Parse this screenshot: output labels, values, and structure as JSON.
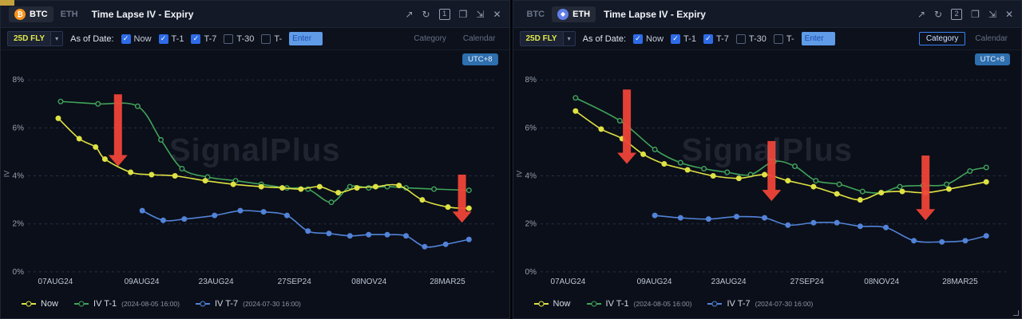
{
  "icons": {
    "open_new": "↗",
    "refresh": "↻",
    "popout": "❐",
    "expand": "⇲",
    "close": "✕",
    "caret": "▾"
  },
  "panels": [
    {
      "badge": "1",
      "title": "Time Lapse IV - Expiry",
      "tabs": [
        {
          "label": "BTC",
          "active": true
        },
        {
          "label": "ETH",
          "active": false
        }
      ],
      "toolbar": {
        "dropdown_value": "25D FLY",
        "as_of_label": "As of Date:",
        "checkboxes": [
          {
            "label": "Now",
            "checked": true
          },
          {
            "label": "T-1",
            "checked": true
          },
          {
            "label": "T-7",
            "checked": true
          },
          {
            "label": "T-30",
            "checked": false
          },
          {
            "label": "T-",
            "checked": false
          }
        ],
        "input_placeholder": "Enter",
        "views": [
          {
            "label": "Category",
            "active": true
          },
          {
            "label": "Calendar",
            "active": false
          }
        ]
      },
      "chart": {
        "type": "line",
        "watermark": "SignalPlus",
        "utc": "UTC+8",
        "ylabel": "IV",
        "ylim": [
          0,
          8
        ],
        "yticks": [
          {
            "label": "0%",
            "value": 0
          },
          {
            "label": "2%",
            "value": 2
          },
          {
            "label": "4%",
            "value": 4
          },
          {
            "label": "6%",
            "value": 6
          },
          {
            "label": "8%",
            "value": 8
          }
        ],
        "xticks": [
          {
            "label": "07AUG24",
            "x": 0.059
          },
          {
            "label": "09AUG24",
            "x": 0.244
          },
          {
            "label": "23AUG24",
            "x": 0.403
          },
          {
            "label": "27SEP24",
            "x": 0.571
          },
          {
            "label": "08NOV24",
            "x": 0.731
          },
          {
            "label": "28MAR25",
            "x": 0.899
          }
        ],
        "draw_order": [
          1,
          0,
          2
        ],
        "series": [
          {
            "name": "Now",
            "date": "",
            "color": "#dfe243",
            "dot_filled": true,
            "points": [
              [
                0.065,
                6.4
              ],
              [
                0.11,
                5.55
              ],
              [
                0.145,
                5.2
              ],
              [
                0.165,
                4.7
              ],
              [
                0.22,
                4.15
              ],
              [
                0.265,
                4.05
              ],
              [
                0.315,
                4.0
              ],
              [
                0.38,
                3.8
              ],
              [
                0.44,
                3.65
              ],
              [
                0.5,
                3.55
              ],
              [
                0.545,
                3.5
              ],
              [
                0.585,
                3.45
              ],
              [
                0.625,
                3.55
              ],
              [
                0.665,
                3.3
              ],
              [
                0.705,
                3.5
              ],
              [
                0.745,
                3.55
              ],
              [
                0.795,
                3.6
              ],
              [
                0.845,
                3.0
              ],
              [
                0.9,
                2.7
              ],
              [
                0.945,
                2.65
              ]
            ]
          },
          {
            "name": "IV T-1",
            "date": "(2024-08-05 16:00)",
            "color": "#41a35a",
            "dot_filled": false,
            "points": [
              [
                0.07,
                7.1
              ],
              [
                0.15,
                7.0
              ],
              [
                0.235,
                6.9
              ],
              [
                0.285,
                5.5
              ],
              [
                0.33,
                4.3
              ],
              [
                0.385,
                3.95
              ],
              [
                0.445,
                3.8
              ],
              [
                0.5,
                3.65
              ],
              [
                0.555,
                3.5
              ],
              [
                0.6,
                3.45
              ],
              [
                0.65,
                2.9
              ],
              [
                0.69,
                3.55
              ],
              [
                0.73,
                3.5
              ],
              [
                0.77,
                3.55
              ],
              [
                0.81,
                3.5
              ],
              [
                0.87,
                3.45
              ],
              [
                0.945,
                3.4
              ]
            ]
          },
          {
            "name": "IV T-7",
            "date": "(2024-07-30 16:00)",
            "color": "#5283d8",
            "dot_filled": true,
            "points": [
              [
                0.245,
                2.55
              ],
              [
                0.29,
                2.15
              ],
              [
                0.335,
                2.2
              ],
              [
                0.4,
                2.35
              ],
              [
                0.455,
                2.55
              ],
              [
                0.505,
                2.5
              ],
              [
                0.555,
                2.35
              ],
              [
                0.6,
                1.7
              ],
              [
                0.645,
                1.6
              ],
              [
                0.69,
                1.5
              ],
              [
                0.73,
                1.55
              ],
              [
                0.77,
                1.55
              ],
              [
                0.81,
                1.5
              ],
              [
                0.85,
                1.05
              ],
              [
                0.895,
                1.15
              ],
              [
                0.945,
                1.35
              ]
            ]
          }
        ],
        "arrows": [
          {
            "x": 0.193,
            "from": 7.4,
            "to": 4.4
          },
          {
            "x": 0.93,
            "from": 4.05,
            "to": 2.05
          }
        ]
      }
    },
    {
      "badge": "2",
      "title": "Time Lapse IV - Expiry",
      "tabs": [
        {
          "label": "BTC",
          "active": false
        },
        {
          "label": "ETH",
          "active": true
        }
      ],
      "toolbar": {
        "dropdown_value": "25D FLY",
        "as_of_label": "As of Date:",
        "checkboxes": [
          {
            "label": "Now",
            "checked": true
          },
          {
            "label": "T-1",
            "checked": true
          },
          {
            "label": "T-7",
            "checked": true
          },
          {
            "label": "T-30",
            "checked": false
          },
          {
            "label": "T-",
            "checked": false
          }
        ],
        "input_placeholder": "Enter",
        "views": [
          {
            "label": "Category",
            "active": true
          },
          {
            "label": "Calendar",
            "active": false
          }
        ]
      },
      "chart": {
        "type": "line",
        "watermark": "SignalPlus",
        "utc": "UTC+8",
        "ylabel": "IV",
        "ylim": [
          0,
          8
        ],
        "yticks": [
          {
            "label": "0%",
            "value": 0
          },
          {
            "label": "2%",
            "value": 2
          },
          {
            "label": "4%",
            "value": 4
          },
          {
            "label": "6%",
            "value": 6
          },
          {
            "label": "8%",
            "value": 8
          }
        ],
        "xticks": [
          {
            "label": "07AUG24",
            "x": 0.059
          },
          {
            "label": "09AUG24",
            "x": 0.244
          },
          {
            "label": "23AUG24",
            "x": 0.403
          },
          {
            "label": "27SEP24",
            "x": 0.571
          },
          {
            "label": "08NOV24",
            "x": 0.731
          },
          {
            "label": "28MAR25",
            "x": 0.899
          }
        ],
        "draw_order": [
          1,
          0,
          2
        ],
        "series": [
          {
            "name": "Now",
            "date": "",
            "color": "#dfe243",
            "dot_filled": true,
            "points": [
              [
                0.075,
                6.7
              ],
              [
                0.13,
                5.95
              ],
              [
                0.175,
                5.55
              ],
              [
                0.22,
                4.9
              ],
              [
                0.265,
                4.5
              ],
              [
                0.315,
                4.25
              ],
              [
                0.37,
                4.0
              ],
              [
                0.425,
                3.9
              ],
              [
                0.48,
                4.05
              ],
              [
                0.53,
                3.8
              ],
              [
                0.585,
                3.55
              ],
              [
                0.635,
                3.25
              ],
              [
                0.685,
                3.0
              ],
              [
                0.73,
                3.3
              ],
              [
                0.775,
                3.35
              ],
              [
                0.825,
                3.3
              ],
              [
                0.875,
                3.45
              ],
              [
                0.955,
                3.75
              ]
            ]
          },
          {
            "name": "IV T-1",
            "date": "(2024-08-05 16:00)",
            "color": "#41a35a",
            "dot_filled": false,
            "points": [
              [
                0.075,
                7.25
              ],
              [
                0.17,
                6.3
              ],
              [
                0.245,
                5.1
              ],
              [
                0.3,
                4.55
              ],
              [
                0.35,
                4.3
              ],
              [
                0.4,
                4.15
              ],
              [
                0.45,
                4.05
              ],
              [
                0.5,
                4.6
              ],
              [
                0.545,
                4.4
              ],
              [
                0.59,
                3.8
              ],
              [
                0.64,
                3.65
              ],
              [
                0.69,
                3.35
              ],
              [
                0.73,
                3.3
              ],
              [
                0.77,
                3.55
              ],
              [
                0.82,
                3.6
              ],
              [
                0.87,
                3.65
              ],
              [
                0.92,
                4.2
              ],
              [
                0.955,
                4.35
              ]
            ]
          },
          {
            "name": "IV T-7",
            "date": "(2024-07-30 16:00)",
            "color": "#5283d8",
            "dot_filled": true,
            "points": [
              [
                0.245,
                2.35
              ],
              [
                0.3,
                2.25
              ],
              [
                0.36,
                2.2
              ],
              [
                0.42,
                2.3
              ],
              [
                0.48,
                2.25
              ],
              [
                0.53,
                1.95
              ],
              [
                0.585,
                2.05
              ],
              [
                0.635,
                2.05
              ],
              [
                0.685,
                1.9
              ],
              [
                0.74,
                1.85
              ],
              [
                0.8,
                1.3
              ],
              [
                0.86,
                1.25
              ],
              [
                0.91,
                1.3
              ],
              [
                0.955,
                1.5
              ]
            ]
          }
        ],
        "arrows": [
          {
            "x": 0.185,
            "from": 7.6,
            "to": 4.5
          },
          {
            "x": 0.495,
            "from": 5.45,
            "to": 2.95
          },
          {
            "x": 0.825,
            "from": 4.85,
            "to": 2.15
          }
        ]
      }
    }
  ]
}
